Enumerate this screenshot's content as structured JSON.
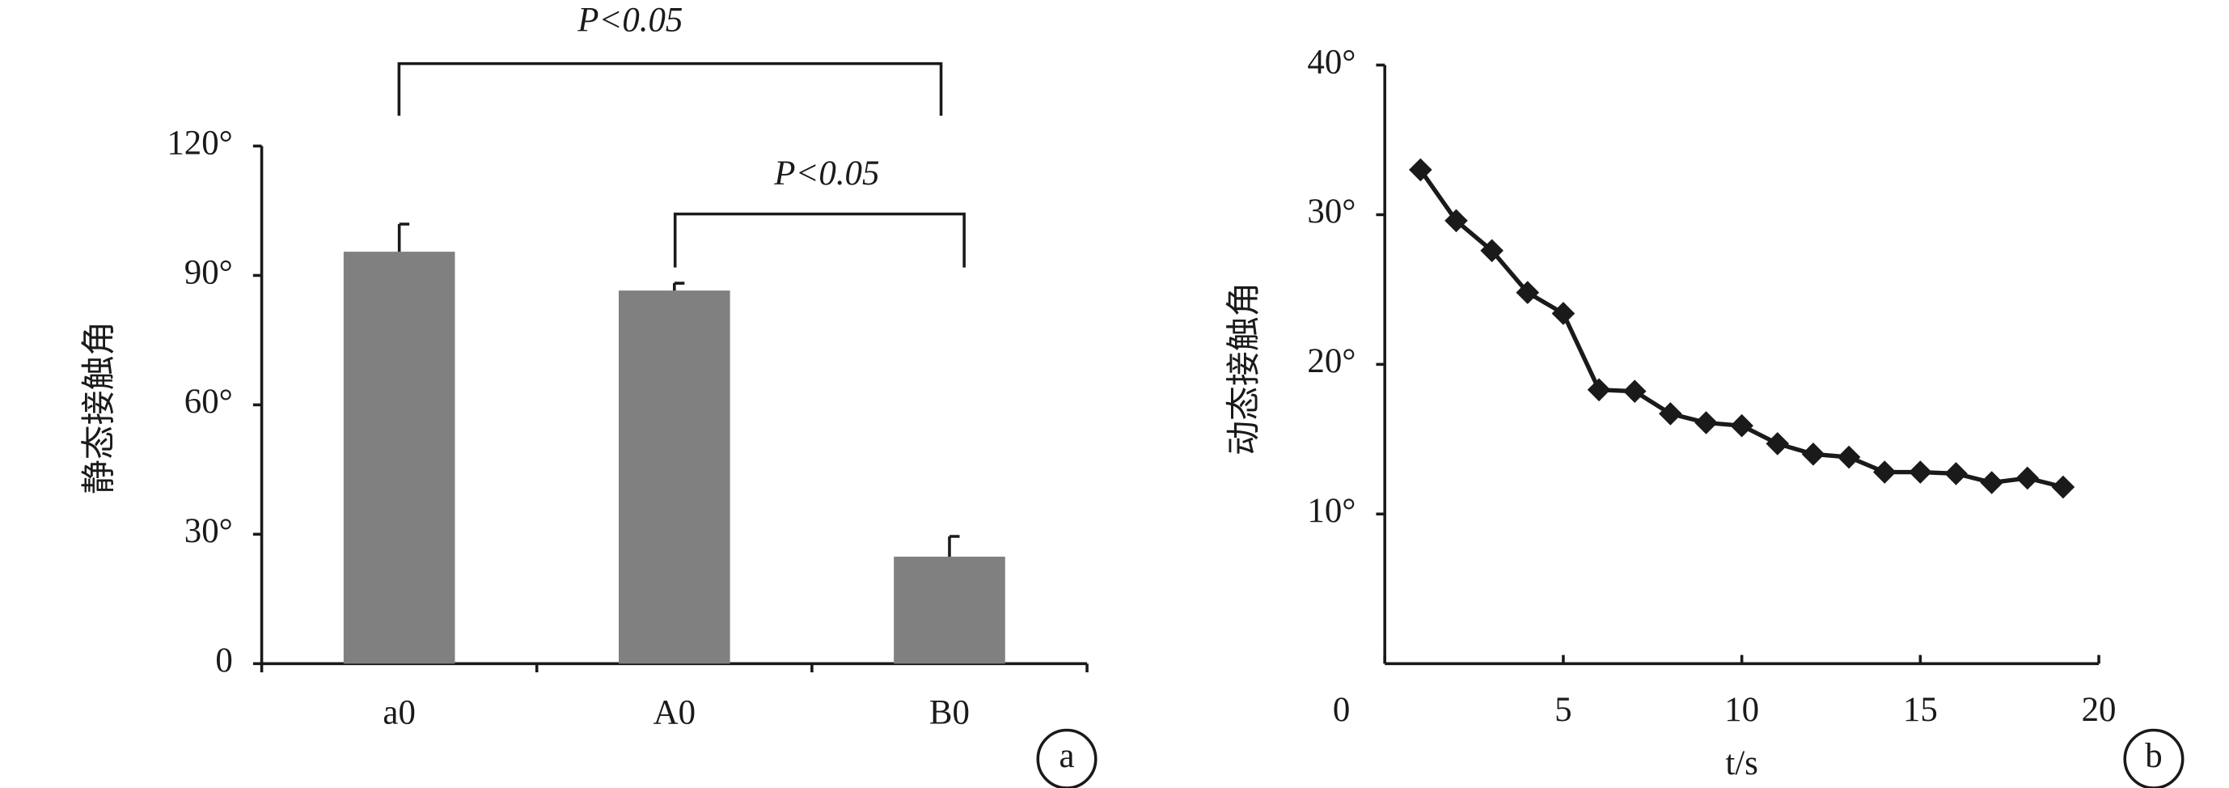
{
  "chart_data": [
    {
      "type": "bar",
      "panel": "a",
      "y_label": "静态接触角",
      "categories": [
        "a0",
        "A0",
        "B0"
      ],
      "values": [
        95.5,
        86.5,
        24.8
      ],
      "errors": [
        6.4,
        1.7,
        4.7
      ],
      "color": "#808080",
      "ylim": [
        0,
        120
      ],
      "yticks": [
        0,
        {
          "value": 30,
          "label": "30°"
        },
        {
          "value": 60,
          "label": "60°"
        },
        {
          "value": 90,
          "label": "90°"
        },
        {
          "value": 120,
          "label": "120°"
        }
      ],
      "annotations": [
        "P<0.05",
        "P<0.05"
      ]
    },
    {
      "type": "line",
      "panel": "b",
      "y_label": "动态接触角",
      "x_label": "t/s",
      "x": [
        1,
        2,
        3,
        4,
        5,
        6,
        7,
        8,
        9,
        10,
        11,
        12,
        13,
        14,
        15,
        16,
        17,
        18,
        19
      ],
      "values": [
        33,
        29.6,
        27.6,
        24.8,
        23.4,
        18.3,
        18.2,
        16.7,
        16.1,
        15.9,
        14.7,
        14,
        13.8,
        12.8,
        12.8,
        12.7,
        12.1,
        12.4,
        11.8
      ],
      "color": "#1a1a1a",
      "xlim": [
        0,
        20
      ],
      "xticks": [
        0,
        5,
        10,
        15,
        20
      ],
      "ylim": [
        0,
        40
      ],
      "yticks": [
        {
          "value": 10,
          "label": "10°"
        },
        {
          "value": 20,
          "label": "20°"
        },
        {
          "value": 30,
          "label": "30°"
        },
        {
          "value": 40,
          "label": "40°"
        }
      ]
    }
  ]
}
